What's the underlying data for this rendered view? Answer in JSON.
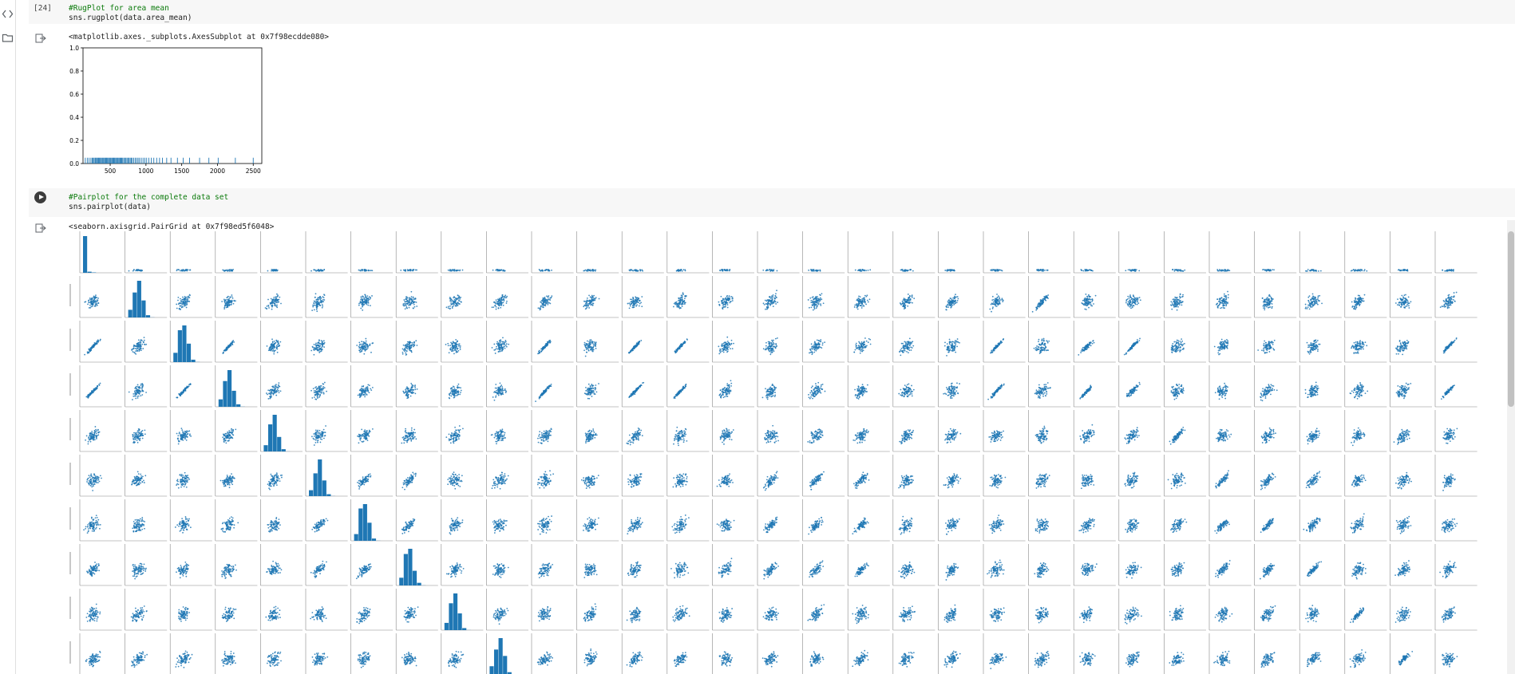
{
  "sidebar": {
    "icons": [
      "code-brackets-icon",
      "folder-icon"
    ]
  },
  "cells": [
    {
      "execution_count": "[24]",
      "code": [
        "#RugPlot for area mean",
        "sns.rugplot(data.area_mean)"
      ],
      "output_text": "<matplotlib.axes._subplots.AxesSubplot at 0x7f98ecdde080>"
    },
    {
      "execution_count": "",
      "code": [
        "#Pairplot for the complete data set",
        "sns.pairplot(data)"
      ],
      "output_text": "<seaborn.axisgrid.PairGrid at 0x7f98ed5f6048>"
    }
  ],
  "chart_data": [
    {
      "type": "scatter",
      "kind": "rugplot",
      "x_ticks": [
        "500",
        "1000",
        "1500",
        "2000",
        "2500"
      ],
      "y_ticks": [
        "0.0",
        "0.2",
        "0.4",
        "0.6",
        "0.8",
        "1.0"
      ],
      "xlim": [
        120,
        2620
      ],
      "ylim": [
        0,
        1
      ],
      "rug_height": 0.05,
      "rug_values": [
        152,
        180,
        205,
        230,
        248,
        262,
        275,
        290,
        300,
        312,
        325,
        338,
        350,
        362,
        375,
        388,
        400,
        412,
        425,
        438,
        450,
        462,
        475,
        488,
        500,
        512,
        525,
        538,
        550,
        562,
        575,
        588,
        600,
        612,
        625,
        638,
        650,
        662,
        675,
        690,
        705,
        720,
        735,
        750,
        765,
        780,
        795,
        810,
        830,
        850,
        870,
        890,
        910,
        935,
        960,
        985,
        1010,
        1040,
        1075,
        1110,
        1150,
        1190,
        1230,
        1290,
        1350,
        1440,
        1520,
        1610,
        1750,
        1880,
        2010,
        2250,
        2500
      ],
      "grid": false,
      "color": "#1f77b4"
    },
    {
      "type": "scatter",
      "kind": "pairplot",
      "n_vars": 31,
      "visible_rows": 10,
      "marker_color": "#1f77b4"
    }
  ]
}
